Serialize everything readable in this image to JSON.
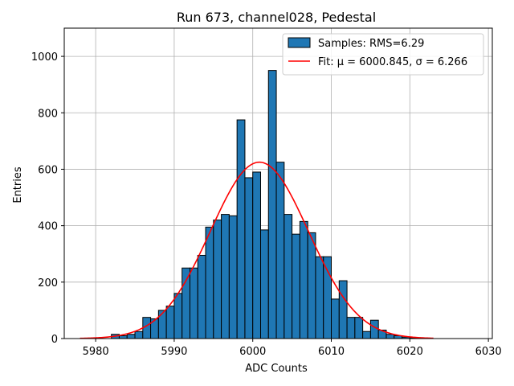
{
  "chart_data": {
    "type": "bar",
    "title": "Run 673, channel028, Pedestal",
    "xlabel": "ADC Counts",
    "ylabel": "Entries",
    "xlim": [
      5976,
      6030.5
    ],
    "ylim": [
      0,
      1100
    ],
    "xticks": [
      5980,
      5990,
      6000,
      6010,
      6020,
      6030
    ],
    "yticks": [
      0,
      200,
      400,
      600,
      800,
      1000
    ],
    "grid": true,
    "legend_position": "top-right",
    "bin_width": 1,
    "bins": [
      {
        "x": 5982,
        "value": 15
      },
      {
        "x": 5983,
        "value": 10
      },
      {
        "x": 5984,
        "value": 15
      },
      {
        "x": 5985,
        "value": 25
      },
      {
        "x": 5986,
        "value": 75
      },
      {
        "x": 5987,
        "value": 70
      },
      {
        "x": 5988,
        "value": 100
      },
      {
        "x": 5989,
        "value": 115
      },
      {
        "x": 5990,
        "value": 160
      },
      {
        "x": 5991,
        "value": 250
      },
      {
        "x": 5992,
        "value": 250
      },
      {
        "x": 5993,
        "value": 295
      },
      {
        "x": 5994,
        "value": 395
      },
      {
        "x": 5995,
        "value": 420
      },
      {
        "x": 5996,
        "value": 440
      },
      {
        "x": 5997,
        "value": 435
      },
      {
        "x": 5998,
        "value": 775
      },
      {
        "x": 5999,
        "value": 570
      },
      {
        "x": 6000,
        "value": 590
      },
      {
        "x": 6001,
        "value": 385
      },
      {
        "x": 6002,
        "value": 950
      },
      {
        "x": 6003,
        "value": 625
      },
      {
        "x": 6004,
        "value": 440
      },
      {
        "x": 6005,
        "value": 370
      },
      {
        "x": 6006,
        "value": 415
      },
      {
        "x": 6007,
        "value": 375
      },
      {
        "x": 6008,
        "value": 290
      },
      {
        "x": 6009,
        "value": 290
      },
      {
        "x": 6010,
        "value": 140
      },
      {
        "x": 6011,
        "value": 205
      },
      {
        "x": 6012,
        "value": 75
      },
      {
        "x": 6013,
        "value": 75
      },
      {
        "x": 6014,
        "value": 25
      },
      {
        "x": 6015,
        "value": 65
      },
      {
        "x": 6016,
        "value": 30
      },
      {
        "x": 6017,
        "value": 15
      },
      {
        "x": 6018,
        "value": 10
      },
      {
        "x": 6019,
        "value": 5
      },
      {
        "x": 6020,
        "value": 3
      }
    ],
    "fit": {
      "mu": 6000.845,
      "sigma": 6.266,
      "amplitude": 625,
      "x_range": [
        5978,
        6023
      ]
    },
    "series": [
      {
        "name": "Samples: RMS=6.29",
        "type": "histogram",
        "color": "#1f77b4",
        "edgecolor": "#000000"
      },
      {
        "name": "Fit: μ = 6000.845, σ = 6.266",
        "type": "line",
        "color": "#ff0000"
      }
    ]
  }
}
